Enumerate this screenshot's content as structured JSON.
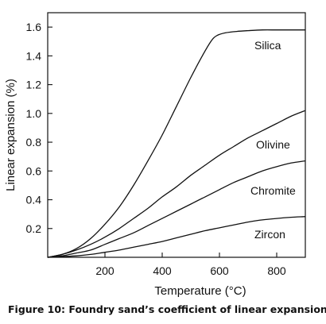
{
  "caption": "Figure 10: Foundry sand’s coefficient of linear expansion",
  "chart_data": {
    "type": "line",
    "title": "",
    "xlabel": "Temperature (°C)",
    "ylabel": "Linear expansion (%)",
    "xlim": [
      0,
      900
    ],
    "ylim": [
      0,
      1.7
    ],
    "xticks": [
      200,
      400,
      600,
      800
    ],
    "xtick_labels": [
      "200",
      "400",
      "600",
      "800"
    ],
    "yticks": [
      0.2,
      0.4,
      0.6,
      0.8,
      1.0,
      1.2,
      1.4,
      1.6
    ],
    "ytick_labels": [
      "0.2",
      "0.4",
      "0.6",
      "0.8",
      "1.0",
      "1.2",
      "1.4",
      "1.6"
    ],
    "grid": false,
    "legend": "none",
    "series": [
      {
        "name": "Silica",
        "x": [
          0,
          50,
          100,
          150,
          200,
          250,
          300,
          350,
          400,
          450,
          500,
          540,
          570,
          590,
          620,
          660,
          700,
          750,
          800,
          850,
          900
        ],
        "y": [
          0.0,
          0.02,
          0.06,
          0.13,
          0.23,
          0.35,
          0.5,
          0.67,
          0.85,
          1.05,
          1.25,
          1.4,
          1.5,
          1.54,
          1.56,
          1.57,
          1.575,
          1.58,
          1.58,
          1.58,
          1.58
        ]
      },
      {
        "name": "Olivine",
        "x": [
          0,
          50,
          100,
          150,
          200,
          250,
          300,
          350,
          400,
          450,
          500,
          550,
          600,
          650,
          700,
          750,
          800,
          850,
          900
        ],
        "y": [
          0.0,
          0.02,
          0.05,
          0.09,
          0.14,
          0.2,
          0.27,
          0.34,
          0.42,
          0.49,
          0.57,
          0.64,
          0.71,
          0.77,
          0.83,
          0.88,
          0.93,
          0.98,
          1.02
        ]
      },
      {
        "name": "Chromite",
        "x": [
          0,
          50,
          100,
          150,
          200,
          250,
          300,
          350,
          400,
          450,
          500,
          550,
          600,
          650,
          700,
          750,
          800,
          850,
          900
        ],
        "y": [
          0.0,
          0.01,
          0.03,
          0.05,
          0.09,
          0.13,
          0.17,
          0.22,
          0.27,
          0.32,
          0.37,
          0.42,
          0.47,
          0.52,
          0.56,
          0.6,
          0.63,
          0.655,
          0.67
        ]
      },
      {
        "name": "Zircon",
        "x": [
          0,
          50,
          100,
          150,
          200,
          250,
          300,
          350,
          400,
          450,
          500,
          550,
          600,
          650,
          700,
          750,
          800,
          850,
          900
        ],
        "y": [
          0.0,
          0.005,
          0.01,
          0.02,
          0.035,
          0.05,
          0.07,
          0.09,
          0.11,
          0.135,
          0.16,
          0.185,
          0.205,
          0.225,
          0.245,
          0.26,
          0.27,
          0.278,
          0.283
        ]
      }
    ]
  }
}
